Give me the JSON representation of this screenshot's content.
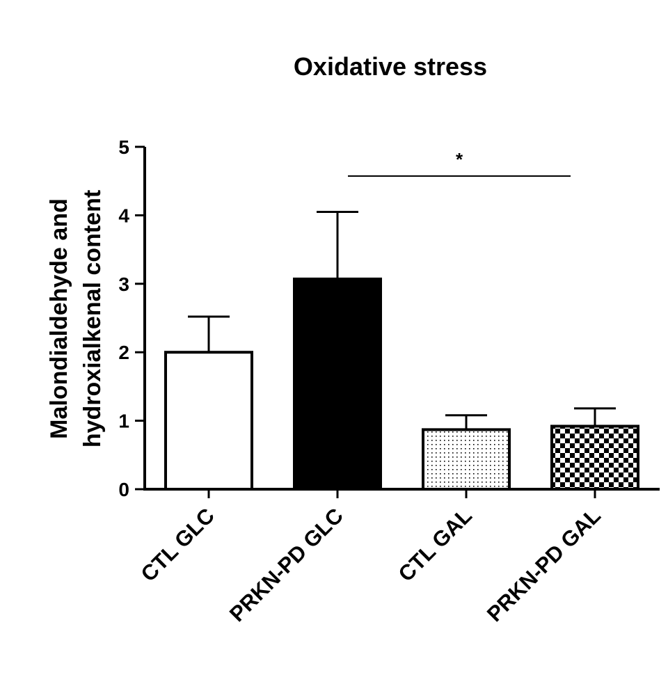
{
  "chart_data": {
    "type": "bar",
    "title": "Oxidative stress",
    "xlabel": "",
    "ylabel_lines": [
      "Malondialdehyde and",
      "hydroxialkenal content"
    ],
    "ylim": [
      0,
      5
    ],
    "yticks": [
      0,
      1,
      2,
      3,
      4,
      5
    ],
    "yticks_labels": [
      "0",
      "1",
      "2",
      "3",
      "4",
      "5"
    ],
    "grid": false,
    "legend": "none",
    "categories": [
      "CTL GLC",
      "PRKN-PD GLC",
      "CTL GAL",
      "PRKN-PD GAL"
    ],
    "values": [
      2.0,
      3.07,
      0.87,
      0.92
    ],
    "error_upper": [
      0.52,
      0.98,
      0.21,
      0.26
    ],
    "bar_fills": [
      "white",
      "solid-black",
      "dots",
      "checker"
    ],
    "significance": [
      {
        "from_category": "PRKN-PD GLC",
        "to_category": "PRKN-PD GAL",
        "label": "*"
      }
    ]
  },
  "colors": {
    "ink": "#000000",
    "background": "#ffffff"
  }
}
